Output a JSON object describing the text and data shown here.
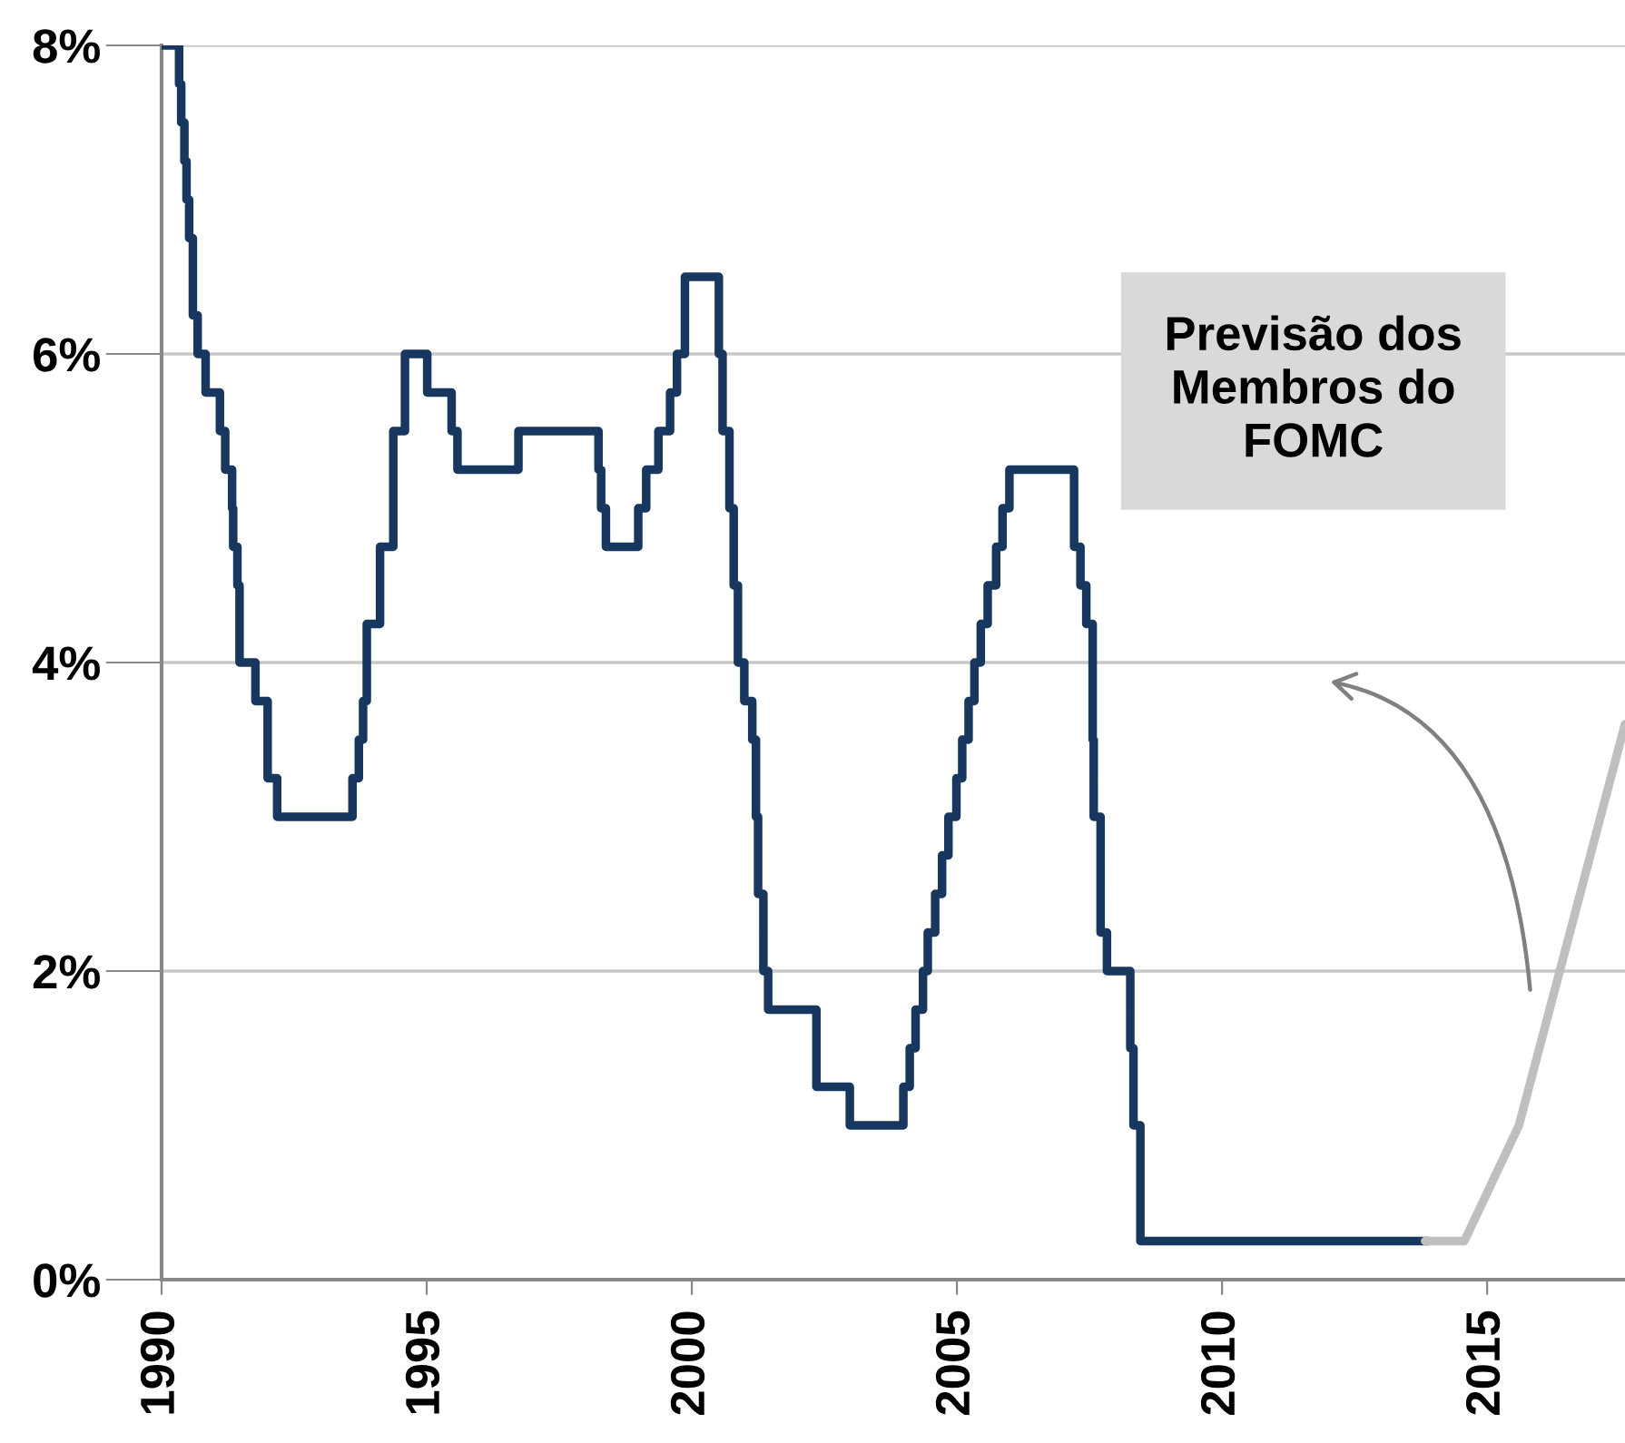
{
  "chart_data": {
    "type": "step",
    "xlim": [
      1990,
      2017.6
    ],
    "xticks": [
      1990,
      1995,
      2000,
      2005,
      2010,
      2015
    ],
    "ylim": [
      0,
      8
    ],
    "yticks": [
      {
        "value": 0,
        "label": "0%"
      },
      {
        "value": 2,
        "label": "2%"
      },
      {
        "value": 4,
        "label": "4%"
      },
      {
        "value": 6,
        "label": "6%"
      },
      {
        "value": 8,
        "label": "8%"
      }
    ],
    "grid": "y",
    "annotations": [
      "Previsão dos\nMembros do\nFOMC"
    ],
    "series": [
      {
        "color": "#17375e",
        "x": [
          1990.0,
          1990.33,
          1990.37,
          1990.43,
          1990.47,
          1990.52,
          1990.59,
          1990.68,
          1990.83,
          1991.1,
          1991.2,
          1991.33,
          1991.35,
          1991.43,
          1991.47,
          1991.77,
          1992.0,
          1992.18,
          1993.6,
          1993.72,
          1993.8,
          1993.87,
          1994.12,
          1994.37,
          1994.59,
          1995.01,
          1995.47,
          1995.58,
          1996.73,
          1998.24,
          1998.29,
          1998.38,
          1998.99,
          1999.14,
          1999.37,
          1999.59,
          1999.72,
          1999.87,
          2000.51,
          2000.58,
          2000.71,
          2000.79,
          2000.87,
          2000.99,
          2001.14,
          2001.21,
          2001.25,
          2001.35,
          2001.44,
          2002.35,
          2002.98,
          2003.99,
          2004.11,
          2004.22,
          2004.36,
          2004.45,
          2004.59,
          2004.72,
          2004.84,
          2004.99,
          2005.1,
          2005.22,
          2005.33,
          2005.45,
          2005.58,
          2005.74,
          2005.86,
          2005.99,
          2007.21,
          2007.33,
          2007.44,
          2007.56,
          2007.58,
          2007.71,
          2007.83,
          2008.27,
          2008.33,
          2008.46,
          2013.83
        ],
        "values": [
          8.0,
          7.75,
          7.5,
          7.25,
          7.0,
          6.75,
          6.25,
          6.0,
          5.75,
          5.5,
          5.25,
          5.0,
          4.75,
          4.5,
          4.0,
          3.75,
          3.25,
          3.0,
          3.25,
          3.5,
          3.75,
          4.25,
          4.75,
          5.5,
          6.0,
          5.75,
          5.5,
          5.25,
          5.5,
          5.25,
          5.0,
          4.75,
          5.0,
          5.25,
          5.5,
          5.75,
          6.0,
          6.5,
          6.0,
          5.5,
          5.0,
          4.5,
          4.0,
          3.75,
          3.5,
          3.0,
          2.5,
          2.0,
          1.75,
          1.25,
          1.0,
          1.25,
          1.5,
          1.75,
          2.0,
          2.25,
          2.5,
          2.75,
          3.0,
          3.25,
          3.5,
          3.75,
          4.0,
          4.25,
          4.5,
          4.75,
          5.0,
          5.25,
          4.75,
          4.5,
          4.25,
          3.5,
          3.0,
          2.25,
          2.0,
          1.5,
          1.0,
          0.25,
          0.25
        ]
      },
      {
        "type": "line",
        "color": "#bfbfbf",
        "x": [
          2013.83,
          2014.57,
          2015.6,
          2017.6
        ],
        "values": [
          0.25,
          0.25,
          1.0,
          3.6
        ]
      }
    ]
  }
}
